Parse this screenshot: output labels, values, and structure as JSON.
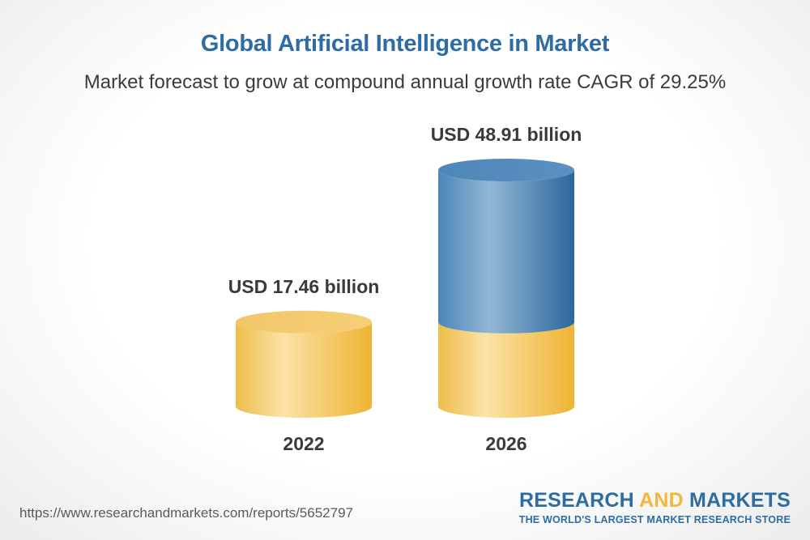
{
  "header": {
    "title": "Global Artificial Intelligence in Market",
    "subtitle": "Market forecast to grow at compound annual growth rate CAGR of 29.25%"
  },
  "chart_data": {
    "type": "bar",
    "title": "Global Artificial Intelligence in Market",
    "subtitle": "Market forecast to grow at compound annual growth rate CAGR of 29.25%",
    "categories": [
      "2022",
      "2026"
    ],
    "values": [
      17.46,
      48.91
    ],
    "data_labels": [
      "USD 17.46 billion",
      "USD 48.91 billion"
    ],
    "unit": "USD billion",
    "style": "3d-cylinder",
    "colors": {
      "base": "#f4c65e",
      "growth": "#4a86b8"
    }
  },
  "footer": {
    "url": "https://www.researchandmarkets.com/reports/5652797",
    "brand_part1": "RESEARCH ",
    "brand_part2": "AND",
    "brand_part3": " MARKETS",
    "tagline": "THE WORLD'S LARGEST MARKET RESEARCH STORE"
  }
}
